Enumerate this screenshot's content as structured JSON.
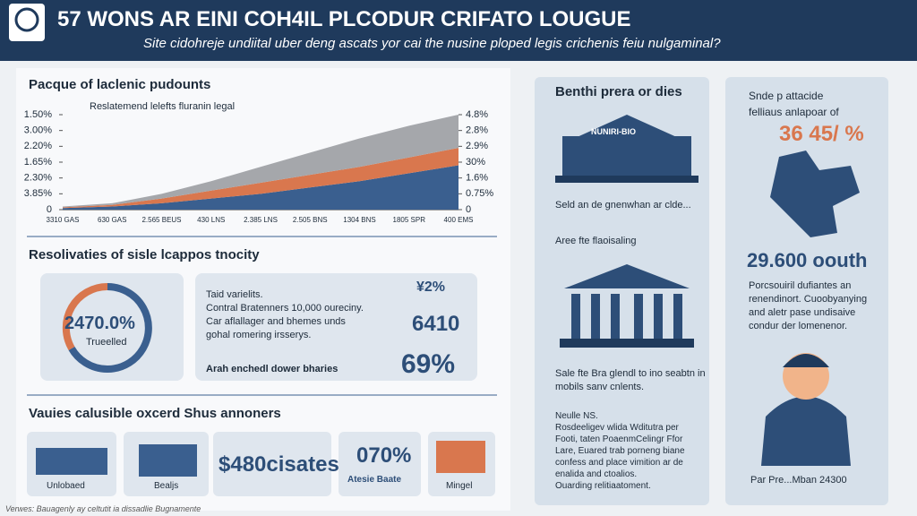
{
  "header": {
    "title": "57 WONS AR EINI COH4IL PLCODUR CRIFATO LOUGUE",
    "subtitle": "Site cidohreje undiital uber deng ascats yor cai the nusine ploped legis crichenis feiu nulgaminal?"
  },
  "section1": {
    "heading": "Pacque of laclenic pudounts"
  },
  "chart_data": {
    "type": "area",
    "subtitle": "Reslatemend lelefts fluranin legal",
    "stacked": true,
    "categories": [
      "3310 GAS",
      "630 GAS",
      "2.565 BEUS",
      "430 LNS",
      "2.385 LNS",
      "2.505 BNS",
      "1304 BNS",
      "1805 SPR",
      "400 EMS"
    ],
    "series": [
      {
        "color": "#3a5f8f",
        "values": [
          0.1,
          0.2,
          0.4,
          0.7,
          1.0,
          1.4,
          1.8,
          2.3,
          2.8
        ]
      },
      {
        "color": "#d9774e",
        "values": [
          0.05,
          0.1,
          0.3,
          0.5,
          0.7,
          0.8,
          0.9,
          1.0,
          1.1
        ]
      },
      {
        "color": "#a5a7ab",
        "values": [
          0.05,
          0.1,
          0.3,
          0.6,
          1.0,
          1.4,
          1.8,
          2.0,
          2.1
        ]
      }
    ],
    "ylim": [
      0,
      6
    ],
    "yticks": [
      0,
      {
        "value": 1,
        "label": "3.85%"
      },
      {
        "value": 2,
        "label": "2.30%"
      },
      {
        "value": 3,
        "label": "1.65%"
      },
      {
        "value": 4,
        "label": "2.20%"
      },
      {
        "value": 5,
        "label": "3.00%"
      },
      {
        "value": 6,
        "label": "1.50%"
      }
    ],
    "y2lim": [
      0,
      6
    ],
    "y2ticks": [
      0,
      {
        "value": 1,
        "label": "0.75%"
      },
      {
        "value": 2,
        "label": "1.6%"
      },
      {
        "value": 3,
        "label": "30%"
      },
      {
        "value": 4,
        "label": "2.9%"
      },
      {
        "value": 5,
        "label": "2.8%"
      },
      {
        "value": 6,
        "label": "4.8%"
      }
    ]
  },
  "section2": {
    "heading": "Resolivaties of sisle lcappos tnocity",
    "donut_value": "2470.0%",
    "donut_label": "Trueelled",
    "lines": [
      "Taid varielits.",
      "Contral Bratenners 10,000 oureciny.",
      "Car aflallager and bhemes unds",
      "gohal romering irsserys."
    ],
    "footer_line": "Arah enchedl dower bharies",
    "stats": [
      "¥2%",
      "6410",
      "69%"
    ]
  },
  "section3": {
    "heading": "Vauies calusible oxcerd Shus annoners",
    "cards": [
      "Unlobaed",
      "Bealjs",
      "$480cisates",
      "070%",
      "Atesie Baate",
      "Mingel"
    ]
  },
  "footer": "Verwes: Bauagenly ay celtutit ia dissadlie Bugnamente",
  "middle": {
    "heading": "Benthi prera or dies",
    "sign": "NUNIRI-BIO",
    "text1": "Seld an de gnenwhan ar clde...",
    "text2": "Aree fte flaoisaling",
    "text3": [
      "Sale fte Bra glendl to ino seabtn in",
      "mobils sanv cnlents."
    ],
    "text4": [
      "Neulle NS.",
      "Rosdeeligev wlida Wditutra per",
      "Footi, taten PoaenmCelingr Ffor",
      "Lare, Euared trab porneng biane",
      "confess and place vimition ar de",
      "enalida and ctoalios.",
      "Ouarding relitiaatoment."
    ]
  },
  "right": {
    "heading": "Snde p attacide",
    "sub": "felliaus anlapoar of",
    "big": "36 45/ %",
    "stat": "29.600 oouth",
    "text": [
      "Porcsouiril dufiantes an",
      "renendinort. Cuoobyanying",
      "and aletr pase undisaive",
      "condur der lomenenor."
    ],
    "caption": "Par Pre...Mban 24300"
  }
}
